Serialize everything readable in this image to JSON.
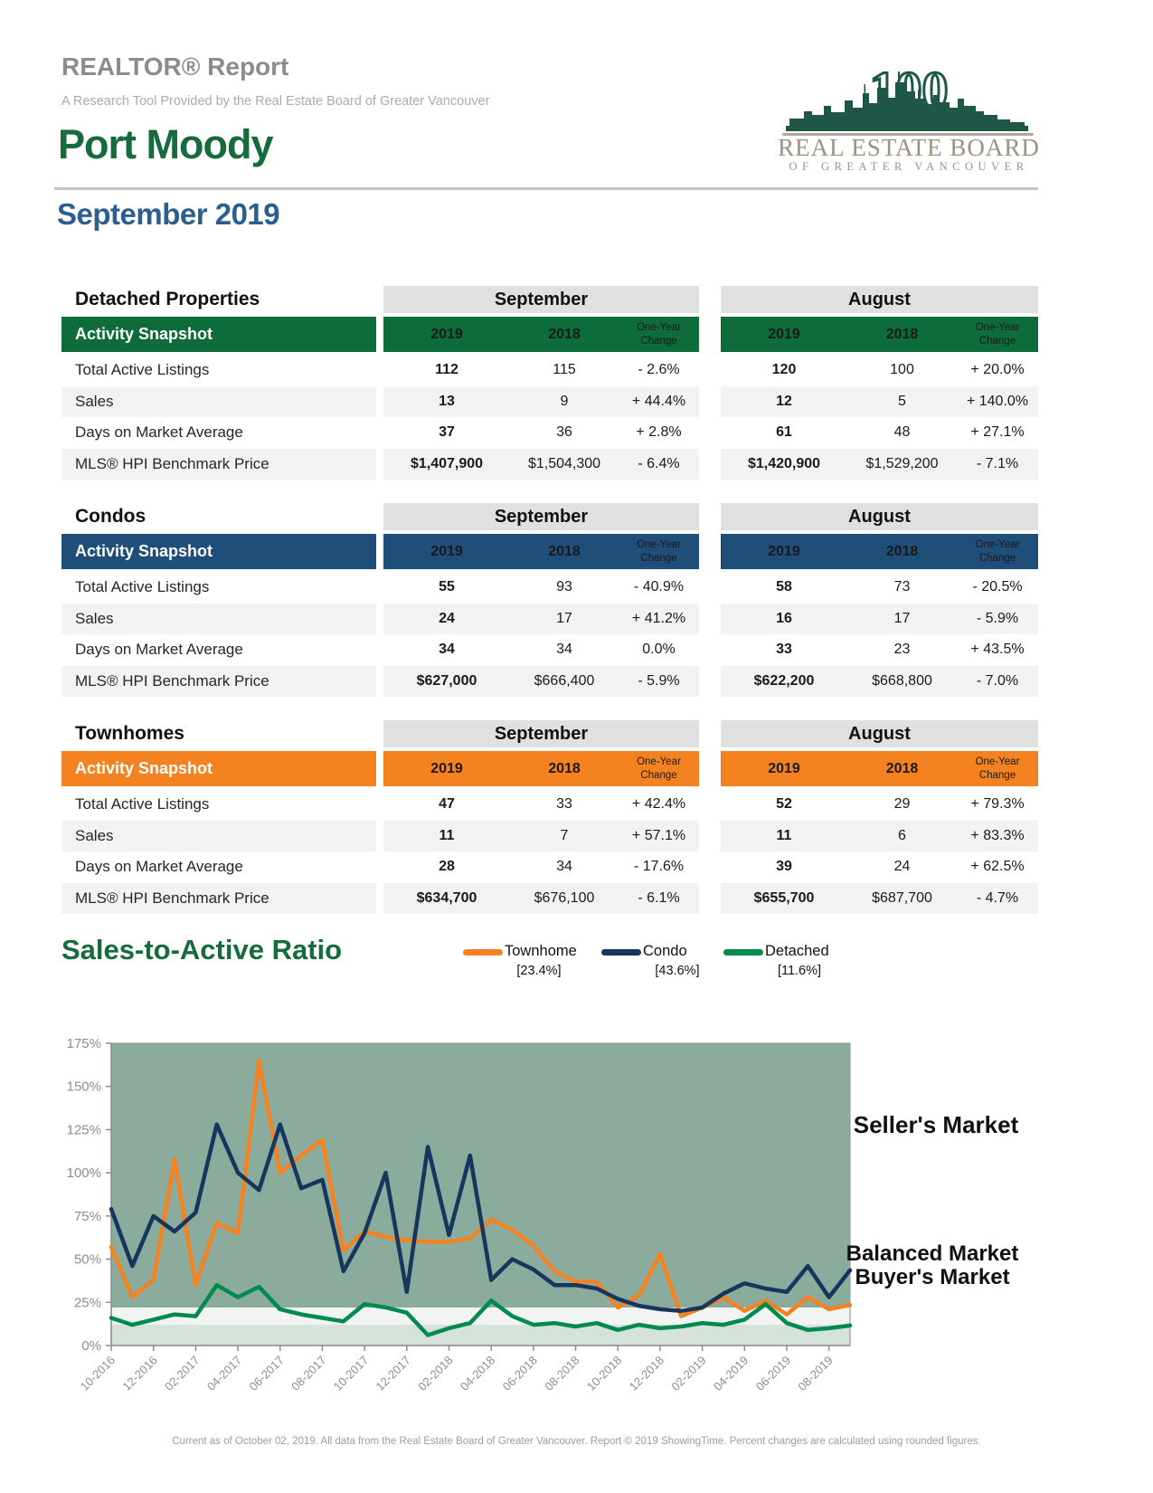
{
  "report": {
    "title": "REALTOR® Report",
    "subtitle": "A Research Tool Provided by the Real Estate Board of Greater Vancouver",
    "area": "Port Moody",
    "period": "September 2019",
    "footer": "Current as of October 02, 2019. All data from the Real Estate Board of Greater Vancouver. Report © 2019 ShowingTime. Percent changes are calculated using rounded figures."
  },
  "logo": {
    "anniversary": "100",
    "line1": "REAL ESTATE BOARD",
    "line2": "OF GREATER VANCOUVER",
    "skyline_color": "#1e5748",
    "text_color": "#9c9183"
  },
  "tables": [
    {
      "name": "Detached Properties",
      "accent": "#0e6b3a",
      "month_groups": [
        "September",
        "August"
      ],
      "header": {
        "label": "Activity Snapshot",
        "cols": [
          "2019",
          "2018",
          "One-Year Change"
        ]
      },
      "rows": [
        {
          "label": "Total Active Listings",
          "sep": [
            "112",
            "115",
            "- 2.6%"
          ],
          "aug": [
            "120",
            "100",
            "+ 20.0%"
          ]
        },
        {
          "label": "Sales",
          "sep": [
            "13",
            "9",
            "+ 44.4%"
          ],
          "aug": [
            "12",
            "5",
            "+ 140.0%"
          ]
        },
        {
          "label": "Days on Market Average",
          "sep": [
            "37",
            "36",
            "+ 2.8%"
          ],
          "aug": [
            "61",
            "48",
            "+ 27.1%"
          ]
        },
        {
          "label": "MLS® HPI Benchmark Price",
          "sep": [
            "$1,407,900",
            "$1,504,300",
            "- 6.4%"
          ],
          "aug": [
            "$1,420,900",
            "$1,529,200",
            "- 7.1%"
          ]
        }
      ]
    },
    {
      "name": "Condos",
      "accent": "#1f4e79",
      "month_groups": [
        "September",
        "August"
      ],
      "header": {
        "label": "Activity Snapshot",
        "cols": [
          "2019",
          "2018",
          "One-Year Change"
        ]
      },
      "rows": [
        {
          "label": "Total Active Listings",
          "sep": [
            "55",
            "93",
            "- 40.9%"
          ],
          "aug": [
            "58",
            "73",
            "- 20.5%"
          ]
        },
        {
          "label": "Sales",
          "sep": [
            "24",
            "17",
            "+ 41.2%"
          ],
          "aug": [
            "16",
            "17",
            "- 5.9%"
          ]
        },
        {
          "label": "Days on Market Average",
          "sep": [
            "34",
            "34",
            "0.0%"
          ],
          "aug": [
            "33",
            "23",
            "+ 43.5%"
          ]
        },
        {
          "label": "MLS® HPI Benchmark Price",
          "sep": [
            "$627,000",
            "$666,400",
            "- 5.9%"
          ],
          "aug": [
            "$622,200",
            "$668,800",
            "- 7.0%"
          ]
        }
      ]
    },
    {
      "name": "Townhomes",
      "accent": "#f58220",
      "month_groups": [
        "September",
        "August"
      ],
      "header": {
        "label": "Activity Snapshot",
        "cols": [
          "2019",
          "2018",
          "One-Year Change"
        ]
      },
      "rows": [
        {
          "label": "Total Active Listings",
          "sep": [
            "47",
            "33",
            "+ 42.4%"
          ],
          "aug": [
            "52",
            "29",
            "+ 79.3%"
          ]
        },
        {
          "label": "Sales",
          "sep": [
            "11",
            "7",
            "+ 57.1%"
          ],
          "aug": [
            "11",
            "6",
            "+ 83.3%"
          ]
        },
        {
          "label": "Days on Market Average",
          "sep": [
            "28",
            "34",
            "- 17.6%"
          ],
          "aug": [
            "39",
            "24",
            "+ 62.5%"
          ]
        },
        {
          "label": "MLS® HPI Benchmark Price",
          "sep": [
            "$634,700",
            "$676,100",
            "- 6.1%"
          ],
          "aug": [
            "$655,700",
            "$687,700",
            "- 4.7%"
          ]
        }
      ]
    }
  ],
  "chart_data": {
    "type": "line",
    "title": "Sales-to-Active Ratio",
    "ylim": [
      0,
      175
    ],
    "y_ticks": [
      "0%",
      "25%",
      "50%",
      "75%",
      "100%",
      "125%",
      "150%",
      "175%"
    ],
    "x_tick_step": 2,
    "axis_color": "#8c8c8c",
    "x": [
      "10-2016",
      "11-2016",
      "12-2016",
      "01-2017",
      "02-2017",
      "03-2017",
      "04-2017",
      "05-2017",
      "06-2017",
      "07-2017",
      "08-2017",
      "09-2017",
      "10-2017",
      "11-2017",
      "12-2017",
      "01-2018",
      "02-2018",
      "03-2018",
      "04-2018",
      "05-2018",
      "06-2018",
      "07-2018",
      "08-2018",
      "09-2018",
      "10-2018",
      "11-2018",
      "12-2018",
      "01-2019",
      "02-2019",
      "03-2019",
      "04-2019",
      "05-2019",
      "06-2019",
      "07-2019",
      "08-2019",
      "09-2019"
    ],
    "series": [
      {
        "name": "Townhome",
        "current_label": "[23.4%]",
        "color": "#f58220",
        "values": [
          57,
          28,
          38,
          108,
          35,
          71,
          65,
          165,
          100,
          110,
          119,
          55,
          66,
          63,
          61,
          60,
          60,
          62,
          73,
          67,
          58,
          43,
          37,
          37,
          22,
          29,
          53,
          17,
          22,
          28,
          20,
          26,
          18,
          28,
          21,
          23.4
        ]
      },
      {
        "name": "Condo",
        "current_label": "[43.6%]",
        "color": "#17365d",
        "values": [
          79,
          46,
          75,
          66,
          77,
          128,
          100,
          90,
          128,
          91,
          96,
          43,
          65,
          100,
          31,
          115,
          64,
          110,
          38,
          50,
          44,
          35,
          35,
          33,
          27,
          23,
          21,
          20,
          22,
          30,
          36,
          33,
          31,
          46,
          28,
          43.6
        ]
      },
      {
        "name": "Detached",
        "current_label": "[11.6%]",
        "color": "#008a4d",
        "values": [
          16,
          12,
          15,
          18,
          17,
          35,
          28,
          34,
          21,
          18,
          16,
          14,
          24,
          22,
          19,
          6,
          10,
          13,
          26,
          17,
          12,
          13,
          11,
          13,
          9,
          12,
          10,
          11,
          13,
          12,
          15,
          24,
          13,
          9,
          10,
          11.6
        ]
      }
    ],
    "zones": [
      {
        "label": "Seller's Market",
        "from": 22,
        "to": 175,
        "color": "#8bac9c"
      },
      {
        "label": "Balanced Market",
        "from": 12,
        "to": 22,
        "color": "#f1f4f2"
      },
      {
        "label": "Buyer's Market",
        "from": 0,
        "to": 12,
        "color": "#d5e2da"
      }
    ]
  }
}
